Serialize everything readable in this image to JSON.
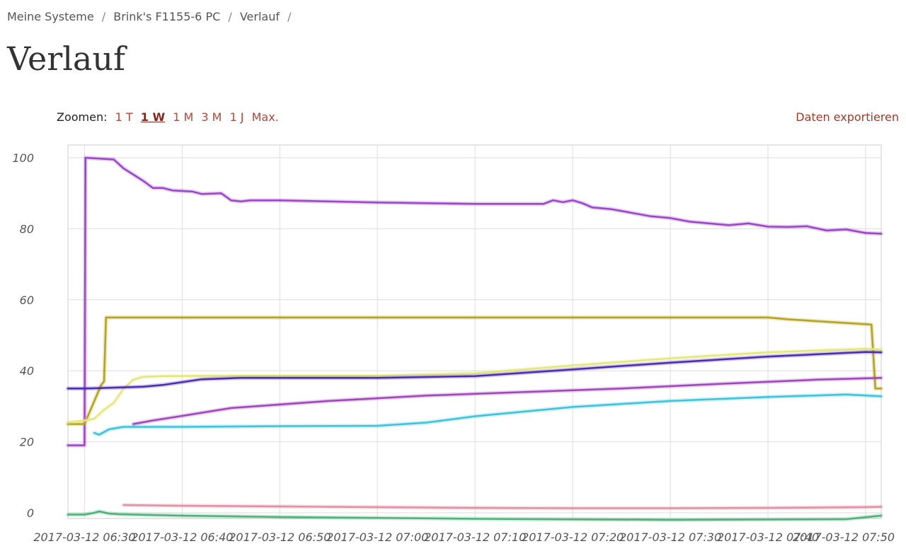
{
  "breadcrumb": {
    "items": [
      "Meine Systeme",
      "Brink's F1155-6 PC",
      "Verlauf"
    ],
    "separator": "/"
  },
  "page": {
    "title": "Verlauf"
  },
  "zoom": {
    "label": "Zoomen:",
    "options": [
      "1 T",
      "1 W",
      "1 M",
      "3 M",
      "1 J",
      "Max."
    ],
    "active": "1 W"
  },
  "export_label": "Daten exportieren",
  "colors": {
    "accent": "#b5473a",
    "grid": "#dddddd"
  },
  "chart_data": {
    "type": "line",
    "x_unit": "minutes",
    "ylim": [
      0,
      100
    ],
    "y_ticks": [
      0,
      20,
      40,
      60,
      80,
      100
    ],
    "x_tick_labels": [
      "2017-03-12 06:30",
      "2017-03-12 06:40",
      "2017-03-12 06:50",
      "2017-03-12 07:00",
      "2017-03-12 07:10",
      "2017-03-12 07:20",
      "2017-03-12 07:30",
      "2017-03-12 07:40",
      "2017-03-12 07:50"
    ],
    "x_ticks": [
      0,
      10,
      20,
      30,
      40,
      50,
      60,
      70,
      80
    ],
    "xlim": [
      -1.7,
      81.6
    ],
    "series": [
      {
        "color": "#9b45c9",
        "points": [
          [
            -1.7,
            19
          ],
          [
            0,
            19
          ],
          [
            0.1,
            100
          ],
          [
            3,
            99.5
          ],
          [
            4,
            97
          ],
          [
            6,
            93.5
          ],
          [
            7,
            91.5
          ],
          [
            8,
            91.5
          ],
          [
            9,
            90.8
          ],
          [
            11,
            90.5
          ],
          [
            12,
            89.8
          ],
          [
            14,
            90
          ],
          [
            15,
            88
          ],
          [
            16,
            87.7
          ],
          [
            17,
            88
          ],
          [
            20,
            88
          ],
          [
            30,
            87.4
          ],
          [
            40,
            87
          ],
          [
            47,
            87
          ],
          [
            48,
            88
          ],
          [
            49,
            87.5
          ],
          [
            50,
            88
          ],
          [
            51,
            87.2
          ],
          [
            52,
            86
          ],
          [
            54,
            85.5
          ],
          [
            56,
            84.5
          ],
          [
            58,
            83.5
          ],
          [
            60,
            83
          ],
          [
            62,
            82
          ],
          [
            64,
            81.5
          ],
          [
            66,
            81
          ],
          [
            68,
            81.5
          ],
          [
            70,
            80.6
          ],
          [
            72,
            80.5
          ],
          [
            74,
            80.7
          ],
          [
            76,
            79.5
          ],
          [
            78,
            79.8
          ],
          [
            80,
            78.8
          ],
          [
            81.6,
            78.6
          ]
        ]
      },
      {
        "color": "#b5a21e",
        "points": [
          [
            -1.7,
            25
          ],
          [
            0,
            25
          ],
          [
            1.7,
            36
          ],
          [
            2,
            37
          ],
          [
            2.2,
            55
          ],
          [
            70,
            55
          ],
          [
            72,
            54.5
          ],
          [
            80.6,
            53
          ],
          [
            81,
            35
          ],
          [
            81.6,
            35
          ]
        ]
      },
      {
        "color": "#e2e87a",
        "points": [
          [
            -1.7,
            25.5
          ],
          [
            0,
            26
          ],
          [
            1,
            26.5
          ],
          [
            2,
            29
          ],
          [
            3,
            31
          ],
          [
            4,
            35
          ],
          [
            5,
            37.5
          ],
          [
            6,
            38.3
          ],
          [
            8,
            38.5
          ],
          [
            15,
            38.6
          ],
          [
            30,
            38.6
          ],
          [
            40,
            39.3
          ],
          [
            50,
            41.5
          ],
          [
            60,
            43.5
          ],
          [
            70,
            45.2
          ],
          [
            80,
            46.2
          ],
          [
            81.6,
            46
          ]
        ]
      },
      {
        "color": "#4b2bb3",
        "points": [
          [
            -1.7,
            35
          ],
          [
            0,
            35
          ],
          [
            6,
            35.5
          ],
          [
            8,
            36
          ],
          [
            12,
            37.6
          ],
          [
            16,
            38
          ],
          [
            30,
            38
          ],
          [
            40,
            38.5
          ],
          [
            48,
            40
          ],
          [
            60,
            42.3
          ],
          [
            70,
            44
          ],
          [
            80,
            45.3
          ],
          [
            81.6,
            45.2
          ]
        ]
      },
      {
        "color": "#a046bd",
        "points": [
          [
            5,
            25
          ],
          [
            7,
            26
          ],
          [
            10,
            27.3
          ],
          [
            15,
            29.5
          ],
          [
            25,
            31.5
          ],
          [
            35,
            33
          ],
          [
            45,
            34
          ],
          [
            55,
            35
          ],
          [
            65,
            36.3
          ],
          [
            75,
            37.5
          ],
          [
            81.6,
            38
          ]
        ]
      },
      {
        "color": "#3cc3dd",
        "points": [
          [
            1,
            22.5
          ],
          [
            1.5,
            22
          ],
          [
            2.5,
            23.5
          ],
          [
            4,
            24.2
          ],
          [
            10,
            24.2
          ],
          [
            20,
            24.4
          ],
          [
            30,
            24.5
          ],
          [
            35,
            25.4
          ],
          [
            40,
            27.2
          ],
          [
            50,
            29.8
          ],
          [
            60,
            31.5
          ],
          [
            70,
            32.6
          ],
          [
            78,
            33.3
          ],
          [
            81.6,
            32.8
          ]
        ]
      },
      {
        "color": "#e58ea3",
        "points": [
          [
            4,
            2.2
          ],
          [
            10,
            2
          ],
          [
            20,
            1.8
          ],
          [
            30,
            1.6
          ],
          [
            40,
            1.4
          ],
          [
            50,
            1.3
          ],
          [
            60,
            1.3
          ],
          [
            70,
            1.4
          ],
          [
            80,
            1.6
          ],
          [
            81.6,
            1.7
          ]
        ]
      },
      {
        "color": "#4db27a",
        "points": [
          [
            -1.7,
            -0.5
          ],
          [
            0,
            -0.5
          ],
          [
            1,
            0
          ],
          [
            1.5,
            0.4
          ],
          [
            2.5,
            -0.2
          ],
          [
            3.5,
            -0.4
          ],
          [
            10,
            -0.8
          ],
          [
            20,
            -1.2
          ],
          [
            40,
            -1.7
          ],
          [
            60,
            -2
          ],
          [
            78,
            -1.8
          ],
          [
            81.6,
            -0.8
          ]
        ]
      }
    ]
  }
}
